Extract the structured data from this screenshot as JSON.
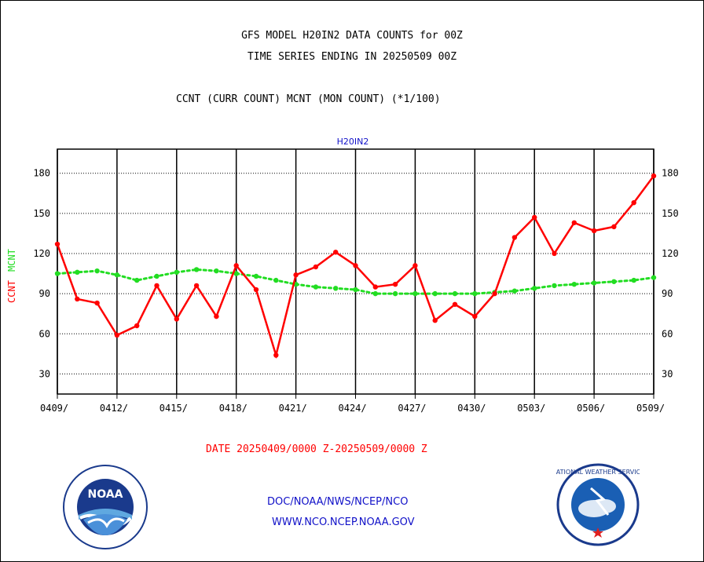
{
  "header": {
    "title_line1": "GFS MODEL H20IN2 DATA COUNTS for 00Z",
    "title_line2": "TIME SERIES ENDING IN 20250509 00Z",
    "subtitle": "CCNT (CURR COUNT) MCNT (MON COUNT) (*1/100)"
  },
  "footer": {
    "date_range": "DATE 20250409/0000 Z-20250509/0000 Z",
    "link1": "DOC/NOAA/NWS/NCEP/NCO",
    "link2": "WWW.NCO.NCEP.NOAA.GOV"
  },
  "logos": {
    "noaa_text": "NOAA",
    "nws_text": "NATIONAL WEATHER SERVICE"
  },
  "chart_data": {
    "type": "line",
    "title": "H20IN2",
    "ylabel_ccnt": "CCNT",
    "ylabel_mcnt": "MCNT",
    "ylim": [
      15,
      198
    ],
    "yticks": [
      30,
      60,
      90,
      120,
      150,
      180
    ],
    "grid": true,
    "x_tick_labels": [
      "0409/",
      "0412/",
      "0415/",
      "0418/",
      "0421/",
      "0424/",
      "0427/",
      "0430/",
      "0503/",
      "0506/",
      "0509/"
    ],
    "x": [
      "0409",
      "0410",
      "0411",
      "0412",
      "0413",
      "0414",
      "0415",
      "0416",
      "0417",
      "0418",
      "0419",
      "0420",
      "0421",
      "0422",
      "0423",
      "0424",
      "0425",
      "0426",
      "0427",
      "0428",
      "0429",
      "0430",
      "0501",
      "0502",
      "0503",
      "0504",
      "0505",
      "0506",
      "0507",
      "0508",
      "0509"
    ],
    "series": [
      {
        "name": "CCNT",
        "color": "#ff0000",
        "style": "solid",
        "values": [
          127,
          86,
          83,
          59,
          66,
          96,
          71,
          96,
          73,
          111,
          93,
          44,
          104,
          110,
          121,
          111,
          95,
          97,
          111,
          70,
          82,
          73,
          90,
          132,
          147,
          120,
          143,
          137,
          140,
          158,
          178
        ]
      },
      {
        "name": "MCNT",
        "color": "#22dd22",
        "style": "dotted",
        "values": [
          105,
          106,
          107,
          104,
          100,
          103,
          106,
          108,
          107,
          105,
          103,
          100,
          97,
          95,
          94,
          93,
          90,
          90,
          90,
          90,
          90,
          90,
          91,
          92,
          94,
          96,
          97,
          98,
          99,
          100,
          102
        ]
      }
    ]
  }
}
